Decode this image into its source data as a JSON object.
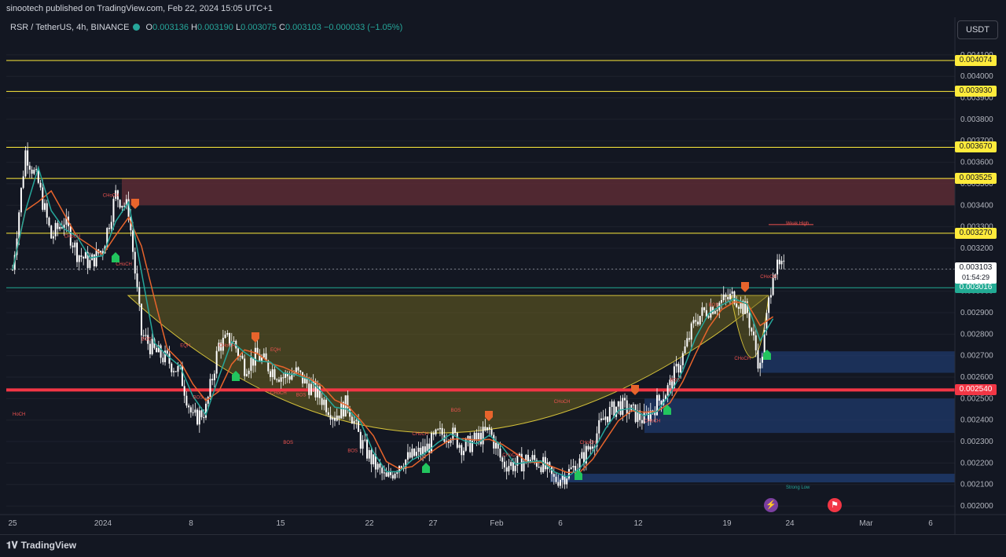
{
  "publisher": "sinootech published on TradingView.com, Feb 22, 2024 15:05 UTC+1",
  "symbol": {
    "name": "RSR / TetherUS, 4h, BINANCE",
    "o_label": "O",
    "o": "0.003136",
    "h_label": "H",
    "h": "0.003190",
    "l_label": "L",
    "l": "0.003075",
    "c_label": "C",
    "c": "0.003103",
    "change": "−0.000033 (−1.05%)"
  },
  "currency": "USDT",
  "brand": "TradingView",
  "colors": {
    "background": "#131722",
    "bull": "#26a69a",
    "bear": "#ef5350",
    "level_yellow": "#ffeb3b",
    "level_red": "#f23645",
    "level_green": "#22ab94",
    "cup_fill": "#6b6320",
    "supply_zone": "#5c2b34",
    "demand_zone": "#1f3a6b"
  },
  "chart_data": {
    "type": "candlestick",
    "ylim": [
      0.00196,
      0.00418
    ],
    "y_ticks": [
      "0.004100",
      "0.004000",
      "0.003900",
      "0.003800",
      "0.003700",
      "0.003600",
      "0.003500",
      "0.003400",
      "0.003300",
      "0.003200",
      "0.003100",
      "0.003000",
      "0.002900",
      "0.002800",
      "0.002700",
      "0.002600",
      "0.002500",
      "0.002400",
      "0.002300",
      "0.002200",
      "0.002100",
      "0.002000"
    ],
    "x_ticks": [
      "25",
      "2024",
      "8",
      "15",
      "22",
      "27",
      "Feb",
      "6",
      "12",
      "19",
      "24",
      "Mar",
      "6"
    ],
    "close_series": [
      [
        "Dec 25",
        0.0031
      ],
      [
        "Dec 26",
        0.00365
      ],
      [
        "Dec 27",
        0.0035
      ],
      [
        "Dec 28",
        0.00325
      ],
      [
        "Dec 29",
        0.00333
      ],
      [
        "Dec 30",
        0.00318
      ],
      [
        "Dec 31",
        0.00313
      ],
      [
        "Jan 1",
        0.0032
      ],
      [
        "Jan 2",
        0.00345
      ],
      [
        "Jan 3",
        0.00338
      ],
      [
        "Jan 4",
        0.0028
      ],
      [
        "Jan 5",
        0.00272
      ],
      [
        "Jan 6",
        0.00268
      ],
      [
        "Jan 7",
        0.00262
      ],
      [
        "Jan 8",
        0.0024
      ],
      [
        "Jan 9",
        0.00245
      ],
      [
        "Jan 10",
        0.00275
      ],
      [
        "Jan 11",
        0.00278
      ],
      [
        "Jan 12",
        0.00265
      ],
      [
        "Jan 13",
        0.0027
      ],
      [
        "Jan 14",
        0.00264
      ],
      [
        "Jan 15",
        0.0026
      ],
      [
        "Jan 16",
        0.00262
      ],
      [
        "Jan 17",
        0.00256
      ],
      [
        "Jan 18",
        0.0025
      ],
      [
        "Jan 19",
        0.00242
      ],
      [
        "Jan 20",
        0.00248
      ],
      [
        "Jan 21",
        0.0023
      ],
      [
        "Jan 22",
        0.0022
      ],
      [
        "Jan 23",
        0.00212
      ],
      [
        "Jan 24",
        0.0022
      ],
      [
        "Jan 25",
        0.00223
      ],
      [
        "Jan 26",
        0.00226
      ],
      [
        "Jan 27",
        0.00233
      ],
      [
        "Jan 28",
        0.00234
      ],
      [
        "Jan 29",
        0.00227
      ],
      [
        "Jan 30",
        0.00231
      ],
      [
        "Jan 31",
        0.00235
      ],
      [
        "Feb 1",
        0.0022
      ],
      [
        "Feb 2",
        0.00219
      ],
      [
        "Feb 3",
        0.00222
      ],
      [
        "Feb 4",
        0.0022
      ],
      [
        "Feb 5",
        0.00212
      ],
      [
        "Feb 6",
        0.00215
      ],
      [
        "Feb 7",
        0.0022
      ],
      [
        "Feb 8",
        0.0023
      ],
      [
        "Feb 9",
        0.00242
      ],
      [
        "Feb 10",
        0.00247
      ],
      [
        "Feb 11",
        0.00244
      ],
      [
        "Feb 12",
        0.0024
      ],
      [
        "Feb 13",
        0.00248
      ],
      [
        "Feb 14",
        0.00256
      ],
      [
        "Feb 15",
        0.0027
      ],
      [
        "Feb 16",
        0.00287
      ],
      [
        "Feb 17",
        0.00292
      ],
      [
        "Feb 18",
        0.00295
      ],
      [
        "Feb 19",
        0.00298
      ],
      [
        "Feb 20",
        0.0029
      ],
      [
        "Feb 21",
        0.00264
      ],
      [
        "Feb 22",
        0.003103
      ]
    ],
    "levels": [
      {
        "value": "0.004074",
        "price": 0.004074,
        "color": "yellow"
      },
      {
        "value": "0.003930",
        "price": 0.00393,
        "color": "yellow"
      },
      {
        "value": "0.003670",
        "price": 0.00367,
        "color": "yellow"
      },
      {
        "value": "0.003525",
        "price": 0.003525,
        "color": "yellow"
      },
      {
        "value": "0.003270",
        "price": 0.00327,
        "color": "yellow"
      },
      {
        "value": "0.003016",
        "price": 0.003016,
        "color": "green"
      },
      {
        "value": "0.002540",
        "price": 0.00254,
        "color": "red"
      }
    ],
    "last_price": "0.003103",
    "countdown": "01:54:29",
    "annotations": [
      {
        "text": "CHoCH",
        "x": "Jan 1",
        "y": 0.00344
      },
      {
        "text": "CHoCH",
        "x": "Dec 29",
        "y": 0.00325
      },
      {
        "text": "CHoCH",
        "x": "Jan 2",
        "y": 0.00312
      },
      {
        "text": "HoCH",
        "x": "Dec 25",
        "y": 0.00242
      },
      {
        "text": "BOS",
        "x": "Jan 8",
        "y": 0.0025
      },
      {
        "text": "BOS",
        "x": "Jan 4",
        "y": 0.00277
      },
      {
        "text": "EQH",
        "x": "Jan 7",
        "y": 0.00274
      },
      {
        "text": "CHoCH",
        "x": "Jan 10",
        "y": 0.00274
      },
      {
        "text": "EQH",
        "x": "Jan 14",
        "y": 0.00272
      },
      {
        "text": "CHoCH",
        "x": "Jan 14",
        "y": 0.00252
      },
      {
        "text": "BOS",
        "x": "Jan 16",
        "y": 0.00251
      },
      {
        "text": "BOS",
        "x": "Jan 15",
        "y": 0.00229
      },
      {
        "text": "BOS",
        "x": "Jan 20",
        "y": 0.00225
      },
      {
        "text": "CHoCH",
        "x": "Jan 25",
        "y": 0.00233
      },
      {
        "text": "BOS",
        "x": "Jan 28",
        "y": 0.00244
      },
      {
        "text": "CHoCH",
        "x": "Feb 1",
        "y": 0.00223
      },
      {
        "text": "CHoCH",
        "x": "Feb 5",
        "y": 0.00248
      },
      {
        "text": "CHoCH",
        "x": "Feb 7",
        "y": 0.00229
      },
      {
        "text": "CHoCH",
        "x": "Feb 12",
        "y": 0.00239
      },
      {
        "text": "BOS",
        "x": "Feb 14",
        "y": 0.00258
      },
      {
        "text": "BOS",
        "x": "Feb 17",
        "y": 0.00293
      },
      {
        "text": "CHoCH",
        "x": "Feb 19",
        "y": 0.00268
      },
      {
        "text": "CHoCH",
        "x": "Feb 21",
        "y": 0.00306
      },
      {
        "text": "Weak High",
        "x": "Feb 23",
        "y": 0.00331
      },
      {
        "text": "Strong Low",
        "x": "Feb 23",
        "y": 0.00208
      }
    ]
  }
}
